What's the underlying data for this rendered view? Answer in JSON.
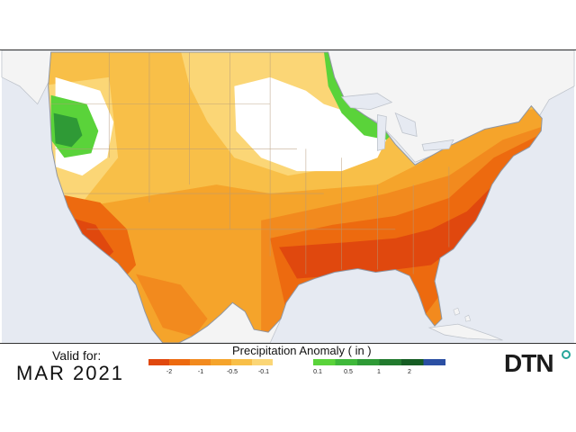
{
  "valid_label": "Valid for:",
  "valid_date": "MAR 2021",
  "legend": {
    "title": "Precipitation Anomaly ( in )",
    "dry_ticks": [
      "-2",
      "-1",
      "-0.5",
      "-0.1"
    ],
    "wet_ticks": [
      "0.1",
      "0.5",
      "1",
      "2"
    ],
    "dry_colors": [
      "#e0480e",
      "#ed6a0f",
      "#f28a1e",
      "#f5a42b",
      "#f8bf48",
      "#fbd676"
    ],
    "wet_colors": [
      "#5ad33a",
      "#3fb83a",
      "#2f9a36",
      "#227a2e",
      "#165d24",
      "#2b4fa3"
    ]
  },
  "brand": "DTN",
  "colors": {
    "ocean": "#e6eaf2",
    "land_outside": "#f4f4f4",
    "base_anomaly": "#f5a42b",
    "dtn_accent": "#26a69a"
  }
}
